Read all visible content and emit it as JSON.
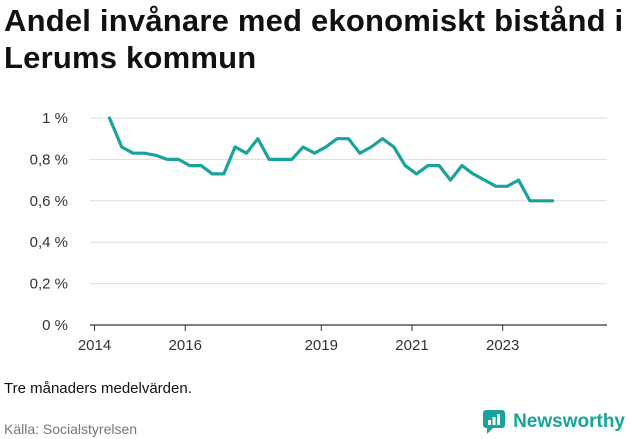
{
  "title": "Andel invånare med ekonomiskt bistånd i Lerums kommun",
  "note": "Tre månaders medelvärden.",
  "source": "Källa: Socialstyrelsen",
  "brand": "Newsworthy",
  "colors": {
    "line": "#19a39a",
    "grid": "#dddddd",
    "axis": "#333333",
    "brand": "#19a39a"
  },
  "chart_data": {
    "type": "line",
    "title": "Andel invånare med ekonomiskt bistånd i Lerums kommun",
    "xlabel": "",
    "ylabel": "",
    "xlim": [
      2013.9,
      2025.3
    ],
    "ylim": [
      0,
      1
    ],
    "grid": true,
    "legend": "none",
    "y_ticks": [
      0,
      0.2,
      0.4,
      0.6,
      0.8,
      1
    ],
    "y_tick_labels": [
      "0 %",
      "0,2 %",
      "0,4 %",
      "0,6 %",
      "0,8 %",
      "1 %"
    ],
    "x_ticks": [
      2014,
      2016,
      2019,
      2021,
      2023
    ],
    "x_tick_labels": [
      "2014",
      "2016",
      "2019",
      "2021",
      "2023"
    ],
    "series": [
      {
        "x": [
          2014.33,
          2014.6,
          2014.85,
          2015.1,
          2015.35,
          2015.6,
          2015.85,
          2016.1,
          2016.35,
          2016.6,
          2016.85,
          2017.1,
          2017.35,
          2017.6,
          2017.85,
          2018.1,
          2018.35,
          2018.6,
          2018.85,
          2019.1,
          2019.35,
          2019.6,
          2019.85,
          2020.1,
          2020.35,
          2020.6,
          2020.85,
          2021.1,
          2021.35,
          2021.6,
          2021.85,
          2022.1,
          2022.35,
          2022.6,
          2022.85,
          2023.1,
          2023.35,
          2023.6,
          2023.85,
          2024.1
        ],
        "values": [
          1.0,
          0.86,
          0.83,
          0.83,
          0.82,
          0.8,
          0.8,
          0.77,
          0.77,
          0.73,
          0.73,
          0.86,
          0.83,
          0.9,
          0.8,
          0.8,
          0.8,
          0.86,
          0.83,
          0.86,
          0.9,
          0.9,
          0.83,
          0.86,
          0.9,
          0.86,
          0.77,
          0.73,
          0.77,
          0.77,
          0.7,
          0.77,
          0.73,
          0.7,
          0.67,
          0.67,
          0.7,
          0.6,
          0.6,
          0.6
        ]
      }
    ]
  }
}
